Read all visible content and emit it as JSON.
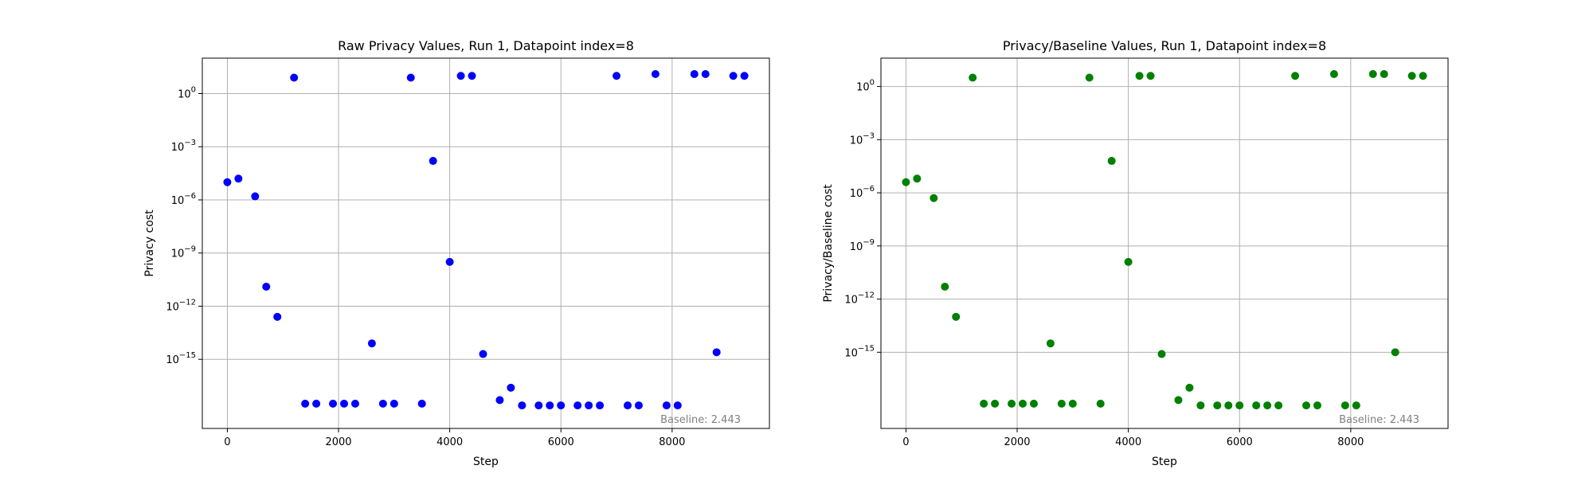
{
  "chart_data": [
    {
      "type": "scatter",
      "title": "Raw Privacy Values, Run 1, Datapoint index=8",
      "xlabel": "Step",
      "ylabel": "Privacy cost",
      "color": "#0000ff",
      "yscale": "log",
      "grid": true,
      "xlim": [
        -450,
        9750
      ],
      "ylim_exp": [
        -18.9,
        2.0
      ],
      "xticks": [
        0,
        2000,
        4000,
        6000,
        8000
      ],
      "xtick_labels": [
        "0",
        "2000",
        "4000",
        "6000",
        "8000"
      ],
      "yticks_exp": [
        0,
        -3,
        -6,
        -9,
        -12,
        -15
      ],
      "ytick_labels": [
        "10^0",
        "10^-3",
        "10^-6",
        "10^-9",
        "10^-12",
        "10^-15"
      ],
      "annotation": "Baseline: 2.443",
      "x": [
        0,
        200,
        500,
        700,
        900,
        1200,
        1400,
        1600,
        1900,
        2100,
        2300,
        2600,
        2800,
        3000,
        3300,
        3500,
        3700,
        4000,
        4200,
        4400,
        4600,
        4900,
        5100,
        5300,
        5600,
        5800,
        6000,
        6300,
        6500,
        6700,
        7000,
        7200,
        7400,
        7700,
        7900,
        8100,
        8400,
        8600,
        8800,
        9100,
        9300
      ],
      "y_exp": [
        -5.0,
        -4.8,
        -5.8,
        -10.9,
        -12.6,
        0.9,
        -17.5,
        -17.5,
        -17.5,
        -17.5,
        -17.5,
        -14.1,
        -17.5,
        -17.5,
        0.9,
        -17.5,
        -3.8,
        -9.5,
        1.0,
        1.0,
        -14.7,
        -17.3,
        -16.6,
        -17.6,
        -17.6,
        -17.6,
        -17.6,
        -17.6,
        -17.6,
        -17.6,
        1.0,
        -17.6,
        -17.6,
        1.1,
        -17.6,
        -17.6,
        1.1,
        1.1,
        -14.6,
        1.0,
        1.0
      ]
    },
    {
      "type": "scatter",
      "title": "Privacy/Baseline Values, Run 1, Datapoint index=8",
      "xlabel": "Step",
      "ylabel": "Privacy/Baseline cost",
      "color": "#008000",
      "yscale": "log",
      "grid": true,
      "xlim": [
        -450,
        9750
      ],
      "ylim_exp": [
        -19.3,
        1.6
      ],
      "xticks": [
        0,
        2000,
        4000,
        6000,
        8000
      ],
      "xtick_labels": [
        "0",
        "2000",
        "4000",
        "6000",
        "8000"
      ],
      "yticks_exp": [
        0,
        -3,
        -6,
        -9,
        -12,
        -15
      ],
      "ytick_labels": [
        "10^0",
        "10^-3",
        "10^-6",
        "10^-9",
        "10^-12",
        "10^-15"
      ],
      "annotation": "Baseline: 2.443",
      "x": [
        0,
        200,
        500,
        700,
        900,
        1200,
        1400,
        1600,
        1900,
        2100,
        2300,
        2600,
        2800,
        3000,
        3300,
        3500,
        3700,
        4000,
        4200,
        4400,
        4600,
        4900,
        5100,
        5300,
        5600,
        5800,
        6000,
        6300,
        6500,
        6700,
        7000,
        7200,
        7400,
        7700,
        7900,
        8100,
        8400,
        8600,
        8800,
        9100,
        9300
      ],
      "y_exp": [
        -5.4,
        -5.2,
        -6.3,
        -11.3,
        -13.0,
        0.5,
        -17.9,
        -17.9,
        -17.9,
        -17.9,
        -17.9,
        -14.5,
        -17.9,
        -17.9,
        0.5,
        -17.9,
        -4.2,
        -9.9,
        0.6,
        0.6,
        -15.1,
        -17.7,
        -17.0,
        -18.0,
        -18.0,
        -18.0,
        -18.0,
        -18.0,
        -18.0,
        -18.0,
        0.6,
        -18.0,
        -18.0,
        0.7,
        -18.0,
        -18.0,
        0.7,
        0.7,
        -15.0,
        0.6,
        0.6
      ]
    }
  ]
}
